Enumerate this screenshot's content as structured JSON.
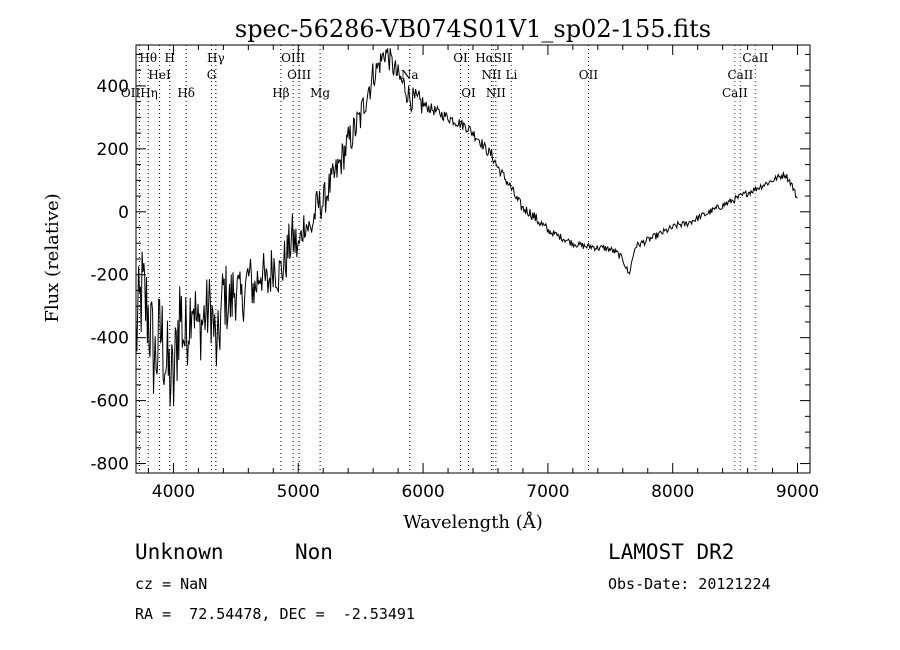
{
  "chart_data": {
    "type": "line",
    "title": "spec-56286-VB074S01V1_sp02-155.fits",
    "xlabel": "Wavelength (Å)",
    "ylabel": "Flux (relative)",
    "xlim": [
      3700,
      9100
    ],
    "ylim": [
      -830,
      530
    ],
    "xticks": [
      4000,
      5000,
      6000,
      7000,
      8000,
      9000
    ],
    "yticks": [
      -800,
      -600,
      -400,
      -200,
      0,
      200,
      400
    ],
    "series": [
      {
        "color": "#000000",
        "x": [
          3700,
          3750,
          3800,
          3850,
          3900,
          3950,
          4000,
          4050,
          4100,
          4150,
          4200,
          4250,
          4300,
          4350,
          4400,
          4450,
          4500,
          4550,
          4600,
          4650,
          4700,
          4750,
          4800,
          4850,
          4900,
          4950,
          5000,
          5050,
          5100,
          5150,
          5200,
          5250,
          5300,
          5350,
          5400,
          5450,
          5500,
          5550,
          5600,
          5650,
          5700,
          5750,
          5800,
          5850,
          5900,
          5950,
          6000,
          6050,
          6100,
          6150,
          6200,
          6250,
          6300,
          6350,
          6400,
          6450,
          6500,
          6550,
          6600,
          6650,
          6700,
          6750,
          6800,
          6850,
          6900,
          6950,
          7000,
          7050,
          7100,
          7150,
          7200,
          7250,
          7300,
          7350,
          7400,
          7450,
          7500,
          7550,
          7600,
          7650,
          7700,
          7750,
          7800,
          7850,
          7900,
          7950,
          8000,
          8050,
          8100,
          8150,
          8200,
          8250,
          8300,
          8350,
          8400,
          8450,
          8500,
          8550,
          8600,
          8650,
          8700,
          8750,
          8800,
          8850,
          8900,
          8950,
          9000
        ],
        "y": [
          -400,
          -250,
          -330,
          -480,
          -380,
          -500,
          -560,
          -300,
          -420,
          -260,
          -380,
          -330,
          -300,
          -460,
          -250,
          -300,
          -230,
          -290,
          -200,
          -250,
          -180,
          -240,
          -160,
          -200,
          -150,
          -80,
          -120,
          -30,
          -60,
          20,
          30,
          80,
          120,
          170,
          220,
          260,
          300,
          380,
          430,
          470,
          510,
          470,
          430,
          400,
          360,
          350,
          340,
          330,
          320,
          310,
          300,
          290,
          280,
          270,
          250,
          230,
          200,
          180,
          140,
          110,
          80,
          40,
          10,
          0,
          -20,
          -40,
          -60,
          -70,
          -80,
          -90,
          -100,
          -105,
          -110,
          -110,
          -115,
          -115,
          -120,
          -130,
          -150,
          -200,
          -110,
          -100,
          -90,
          -80,
          -70,
          -60,
          -50,
          -40,
          -40,
          -30,
          -20,
          -10,
          0,
          10,
          20,
          30,
          40,
          50,
          60,
          70,
          80,
          90,
          100,
          110,
          120,
          90,
          40
        ]
      }
    ],
    "lines": [
      {
        "label": "Hθ",
        "wavelength": 3798,
        "color": "black",
        "row": 1
      },
      {
        "label": "H",
        "wavelength": 3970,
        "color": "black",
        "row": 1
      },
      {
        "label": "Hγ",
        "wavelength": 4340,
        "color": "black",
        "row": 1
      },
      {
        "label": "OIII",
        "wavelength": 4959,
        "color": "black",
        "row": 1
      },
      {
        "label": "OI",
        "wavelength": 6300,
        "color": "black",
        "row": 1
      },
      {
        "label": "HαSII",
        "wavelength": 6563,
        "color": "red",
        "row": 1
      },
      {
        "label": "CaII",
        "wavelength": 8662,
        "color": "red",
        "row": 1
      },
      {
        "label": "HeI",
        "wavelength": 3889,
        "color": "black",
        "row": 2
      },
      {
        "label": "G",
        "wavelength": 4305,
        "color": "black",
        "row": 2
      },
      {
        "label": "OIII",
        "wavelength": 5007,
        "color": "black",
        "row": 2
      },
      {
        "label": "Na",
        "wavelength": 5893,
        "color": "black",
        "row": 2
      },
      {
        "label": "NII",
        "wavelength": 6548,
        "color": "black",
        "row": 2
      },
      {
        "label": "Li",
        "wavelength": 6708,
        "color": "red",
        "row": 2
      },
      {
        "label": "OII",
        "wavelength": 7325,
        "color": "black",
        "row": 2
      },
      {
        "label": "CaII",
        "wavelength": 8542,
        "color": "red",
        "row": 2
      },
      {
        "label": "OIIHη",
        "wavelength": 3727,
        "color": "black",
        "row": 3
      },
      {
        "label": "Hδ",
        "wavelength": 4102,
        "color": "black",
        "row": 3
      },
      {
        "label": "Hβ",
        "wavelength": 4861,
        "color": "black",
        "row": 3
      },
      {
        "label": "Mg",
        "wavelength": 5175,
        "color": "black",
        "row": 3
      },
      {
        "label": "OI",
        "wavelength": 6364,
        "color": "black",
        "row": 3
      },
      {
        "label": "NII",
        "wavelength": 6583,
        "color": "black",
        "row": 3
      },
      {
        "label": "CaII",
        "wavelength": 8498,
        "color": "red",
        "row": 3
      }
    ]
  },
  "info": {
    "classification": "Unknown",
    "subclass": "Non",
    "survey": "LAMOST DR2",
    "cz": "cz = NaN",
    "obs_date": "Obs-Date: 20121224",
    "coords": "RA =  72.54478, DEC =  -2.53491"
  }
}
